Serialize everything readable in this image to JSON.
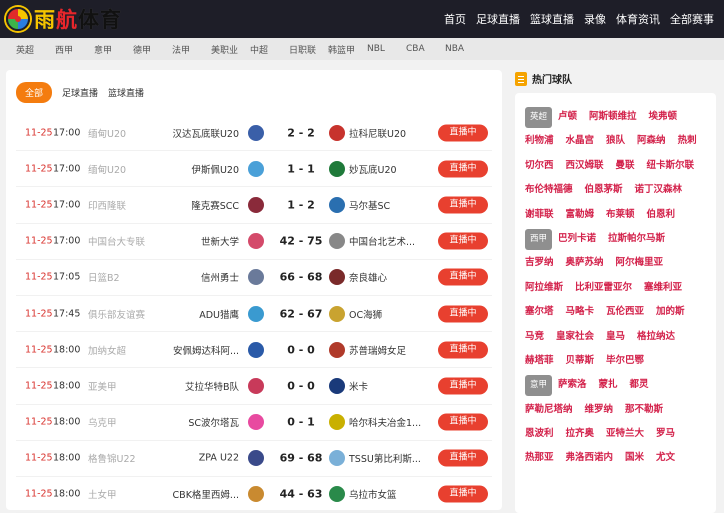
{
  "header": {
    "brand": [
      "雨",
      "航",
      "体育"
    ],
    "nav": [
      "首页",
      "足球直播",
      "篮球直播",
      "录像",
      "体育资讯",
      "全部赛事"
    ]
  },
  "subnav": [
    "英超",
    "西甲",
    "意甲",
    "德甲",
    "法甲",
    "美职业",
    "中超",
    "日职联",
    "韩篮甲",
    "NBL",
    "CBA",
    "NBA"
  ],
  "tabs": [
    {
      "label": "全部",
      "active": true
    },
    {
      "label": "足球直播"
    },
    {
      "label": "篮球直播"
    }
  ],
  "matches": [
    {
      "date": "11-25",
      "time": "17:00",
      "league": "缅甸U20",
      "home": "汉达瓦底联U20",
      "score": "2 - 2",
      "away": "拉科尼联U20",
      "status": "直播中",
      "hc": "#3a5fa8",
      "ac": "#c7332d"
    },
    {
      "date": "11-25",
      "time": "17:00",
      "league": "缅甸U20",
      "home": "伊斯佩U20",
      "score": "1 - 1",
      "away": "妙瓦底U20",
      "status": "直播中",
      "hc": "#4aa0d8",
      "ac": "#1f7a3a"
    },
    {
      "date": "11-25",
      "time": "17:00",
      "league": "印西隆联",
      "home": "隆克赛SCC",
      "score": "1 - 2",
      "away": "马尔基SC",
      "status": "直播中",
      "hc": "#8a2a3a",
      "ac": "#2a6fb0"
    },
    {
      "date": "11-25",
      "time": "17:00",
      "league": "中国台大专联",
      "home": "世新大学",
      "score": "42 - 75",
      "away": "中国台北艺术...",
      "status": "直播中",
      "hc": "#d44a6a",
      "ac": "#888888"
    },
    {
      "date": "11-25",
      "time": "17:05",
      "league": "日篮B2",
      "home": "信州勇士",
      "score": "66 - 68",
      "away": "奈良雄心",
      "status": "直播中",
      "hc": "#6a7a9a",
      "ac": "#7a2a2a"
    },
    {
      "date": "11-25",
      "time": "17:45",
      "league": "俱乐部友谊赛",
      "home": "ADU猎鹰",
      "score": "62 - 67",
      "away": "OC海狮",
      "status": "直播中",
      "hc": "#3a9ad0",
      "ac": "#c9a330"
    },
    {
      "date": "11-25",
      "time": "18:00",
      "league": "加纳女超",
      "home": "安佩姆达科阿...",
      "score": "0 - 0",
      "away": "苏普瑞姆女足",
      "status": "直播中",
      "hc": "#2a5aa8",
      "ac": "#b03a2a"
    },
    {
      "date": "11-25",
      "time": "18:00",
      "league": "亚美甲",
      "home": "艾拉华特B队",
      "score": "0 - 0",
      "away": "米卡",
      "status": "直播中",
      "hc": "#c83a5a",
      "ac": "#1a3a7a"
    },
    {
      "date": "11-25",
      "time": "18:00",
      "league": "乌克甲",
      "home": "SC波尔塔瓦",
      "score": "0 - 1",
      "away": "哈尔科夫冶金1...",
      "status": "直播中",
      "hc": "#e84aa0",
      "ac": "#c9b000"
    },
    {
      "date": "11-25",
      "time": "18:00",
      "league": "格鲁锦U22",
      "home": "ZPA U22",
      "score": "69 - 68",
      "away": "TSSU第比利斯...",
      "status": "直播中",
      "hc": "#3a4a8a",
      "ac": "#7ab0d8"
    },
    {
      "date": "11-25",
      "time": "18:00",
      "league": "土女甲",
      "home": "CBK格里西姆...",
      "score": "44 - 63",
      "away": "乌拉市女篮",
      "status": "直播中",
      "hc": "#c98a30",
      "ac": "#2a8a4a"
    }
  ],
  "sidebar": {
    "title": "热门球队",
    "groups": [
      {
        "league": "英超",
        "teams": [
          "卢顿",
          "阿斯顿维拉",
          "埃弗顿",
          "利物浦",
          "水晶宫",
          "狼队",
          "阿森纳",
          "热刺",
          "切尔西",
          "西汉姆联",
          "曼联",
          "纽卡斯尔联",
          "布伦特福德",
          "伯恩茅斯",
          "诺丁汉森林",
          "谢菲联",
          "富勒姆",
          "布莱顿",
          "伯恩利"
        ]
      },
      {
        "league": "西甲",
        "teams": [
          "巴列卡诺",
          "拉斯帕尔马斯",
          "吉罗纳",
          "奥萨苏纳",
          "阿尔梅里亚",
          "阿拉维斯",
          "比利亚雷亚尔",
          "塞维利亚",
          "塞尔塔",
          "马略卡",
          "瓦伦西亚",
          "加的斯",
          "马竞",
          "皇家社会",
          "皇马",
          "格拉纳达",
          "赫塔菲",
          "贝蒂斯",
          "毕尔巴鄂"
        ]
      },
      {
        "league": "意甲",
        "teams": [
          "萨索洛",
          "蒙扎",
          "都灵",
          "萨勒尼塔纳",
          "维罗纳",
          "那不勒斯",
          "恩波利",
          "拉齐奥",
          "亚特兰大",
          "罗马",
          "热那亚",
          "弗洛西诺内",
          "国米",
          "尤文"
        ]
      }
    ]
  }
}
